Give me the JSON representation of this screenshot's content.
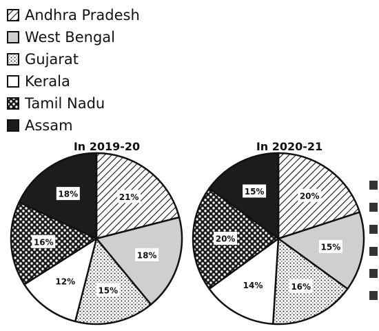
{
  "legend": [
    {
      "name": "Andhra Pradesh",
      "pattern": "hatch"
    },
    {
      "name": "West Bengal",
      "pattern": "light-gray"
    },
    {
      "name": "Gujarat",
      "pattern": "dots"
    },
    {
      "name": "Kerala",
      "pattern": "white"
    },
    {
      "name": "Tamil Nadu",
      "pattern": "checker"
    },
    {
      "name": "Assam",
      "pattern": "black"
    }
  ],
  "chart_data": [
    {
      "type": "pie",
      "title": "In 2019-20",
      "categories": [
        "Andhra Pradesh",
        "West Bengal",
        "Gujarat",
        "Kerala",
        "Tamil Nadu",
        "Assam"
      ],
      "values": [
        21,
        18,
        15,
        12,
        16,
        18
      ],
      "labels": [
        "21%",
        "18%",
        "15%",
        "12%",
        "16%",
        "18%"
      ]
    },
    {
      "type": "pie",
      "title": "In 2020-21",
      "categories": [
        "Andhra Pradesh",
        "West Bengal",
        "Gujarat",
        "Kerala",
        "Tamil Nadu",
        "Assam"
      ],
      "values": [
        20,
        15,
        16,
        14,
        20,
        15
      ],
      "labels": [
        "20%",
        "15%",
        "16%",
        "14%",
        "20%",
        "15%"
      ]
    }
  ],
  "colors": {
    "hatch_bg": "#ffffff",
    "hatch_line": "#111111",
    "light_gray": "#cfcfcf",
    "dots_bg": "#ffffff",
    "dots_fg": "#222222",
    "white": "#ffffff",
    "checker_dark": "#1a1a1a",
    "checker_light": "#ffffff",
    "black": "#1c1c1c",
    "outline": "#111111"
  }
}
